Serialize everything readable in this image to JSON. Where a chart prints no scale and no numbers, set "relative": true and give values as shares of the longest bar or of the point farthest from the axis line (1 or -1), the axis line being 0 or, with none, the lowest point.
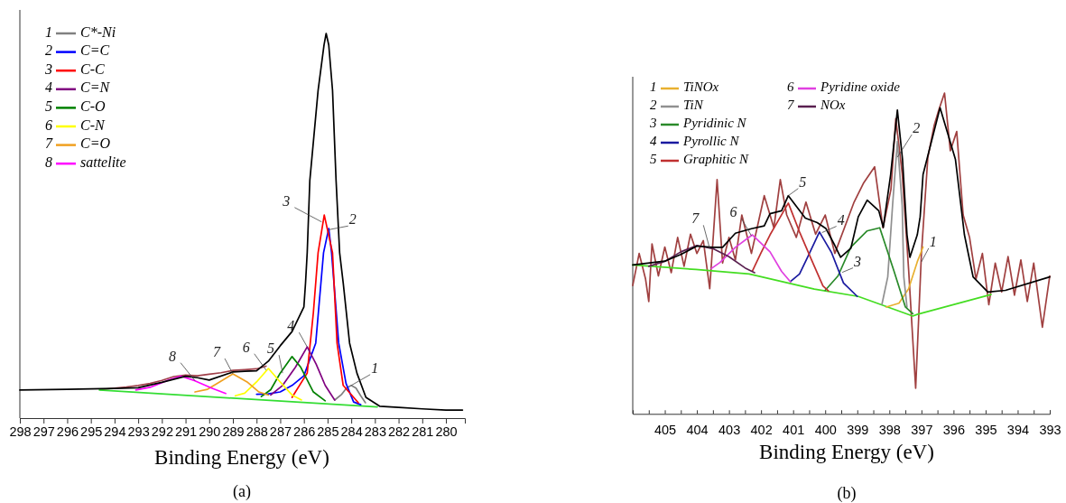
{
  "chart_data": [
    {
      "type": "line",
      "title": "(a)",
      "xlabel": "Binding Energy (eV)",
      "relative": true,
      "legend": "top left",
      "xlim": [
        298,
        279.2
      ],
      "xticks": [
        298,
        297,
        296,
        295,
        294,
        293,
        292,
        291,
        290,
        289,
        288,
        287,
        286,
        285,
        284,
        283,
        282,
        281,
        280
      ],
      "series": [
        {
          "color": "#a0404a",
          "x": [
            294.6,
            294,
            293.5,
            293,
            292.5,
            292,
            291.5,
            291,
            290.5,
            290,
            289.5,
            289,
            288.5,
            288,
            287.6
          ],
          "values": [
            0.074,
            0.078,
            0.081,
            0.085,
            0.09,
            0.098,
            0.108,
            0.112,
            0.11,
            0.114,
            0.118,
            0.124,
            0.126,
            0.128,
            0.135
          ]
        },
        {
          "color": "#33dd33",
          "x": [
            294.64,
            282.9
          ],
          "values": [
            0.073,
            0.029
          ]
        },
        {
          "name": "C*-Ni",
          "color": "#808080",
          "x": [
            284.7,
            284.4,
            284.2,
            284.0,
            283.8,
            283.6,
            283.4
          ],
          "values": [
            0.047,
            0.062,
            0.078,
            0.085,
            0.078,
            0.058,
            0.04
          ]
        },
        {
          "name": "C=C",
          "color": "#0000ff",
          "x": [
            288,
            287.5,
            287,
            286.5,
            286,
            285.5,
            285.17,
            284.95,
            284.83,
            284.53,
            284.22,
            283.9,
            283.6
          ],
          "values": [
            0.062,
            0.063,
            0.068,
            0.085,
            0.11,
            0.195,
            0.43,
            0.493,
            0.43,
            0.195,
            0.09,
            0.042,
            0.035
          ]
        },
        {
          "name": "C-C",
          "color": "#ff0000",
          "x": [
            286.5,
            285.86,
            285.6,
            285.4,
            285.14,
            284.79,
            284.6,
            284.34,
            283.7
          ],
          "values": [
            0.054,
            0.117,
            0.274,
            0.43,
            0.528,
            0.43,
            0.195,
            0.085,
            0.04
          ]
        },
        {
          "name": "C=N",
          "color": "#800080",
          "x": [
            287.4,
            286.9,
            286.36,
            285.86,
            285.48,
            285.1,
            284.7
          ],
          "values": [
            0.06,
            0.085,
            0.132,
            0.185,
            0.14,
            0.085,
            0.047
          ]
        },
        {
          "name": "C-O",
          "color": "#008000",
          "x": [
            287.8,
            287.4,
            287.0,
            286.5,
            286.13,
            285.6,
            285.1
          ],
          "values": [
            0.056,
            0.074,
            0.117,
            0.16,
            0.132,
            0.068,
            0.045
          ]
        },
        {
          "name": "C-N",
          "color": "#ffff00",
          "x": [
            288.9,
            288.5,
            288.0,
            287.5,
            287.0,
            286.5,
            286.1
          ],
          "values": [
            0.058,
            0.065,
            0.094,
            0.129,
            0.094,
            0.06,
            0.047
          ]
        },
        {
          "name": "C=O",
          "color": "#f0a020",
          "x": [
            290.6,
            290.07,
            289.56,
            289.0,
            288.4,
            287.9,
            287.5
          ],
          "values": [
            0.068,
            0.075,
            0.094,
            0.115,
            0.094,
            0.068,
            0.06
          ]
        },
        {
          "name": "sattelite",
          "color": "#ff00ff",
          "x": [
            293.1,
            292.5,
            291.8,
            291.2,
            290.6,
            289.9,
            289.3
          ],
          "values": [
            0.073,
            0.08,
            0.097,
            0.109,
            0.097,
            0.078,
            0.064
          ]
        },
        {
          "color": "#000000",
          "x": [
            298,
            296,
            295,
            294,
            293,
            292,
            291,
            290.5,
            290,
            289,
            288.5,
            288,
            287.5,
            287,
            286.5,
            286,
            285.93,
            285.86,
            285.75,
            285.4,
            285.15,
            285.06,
            284.95,
            284.79,
            284.64,
            284.49,
            284.34,
            284.07,
            283.76,
            283.38,
            282.8,
            282,
            281,
            280,
            279.3
          ],
          "values": [
            0.073,
            0.075,
            0.076,
            0.077,
            0.079,
            0.093,
            0.109,
            0.105,
            0.099,
            0.12,
            0.122,
            0.123,
            0.148,
            0.188,
            0.225,
            0.289,
            0.352,
            0.43,
            0.617,
            0.852,
            0.97,
            1.0,
            0.97,
            0.852,
            0.617,
            0.43,
            0.352,
            0.195,
            0.117,
            0.054,
            0.031,
            0.028,
            0.024,
            0.021,
            0.021
          ]
        }
      ],
      "annotations": [
        {
          "text": "1",
          "x": 284.0,
          "y": 0.085
        },
        {
          "text": "2",
          "x": 284.93,
          "y": 0.49
        },
        {
          "text": "3",
          "x": 285.25,
          "y": 0.51
        },
        {
          "text": "4",
          "x": 285.86,
          "y": 0.185
        },
        {
          "text": "5",
          "x": 286.9,
          "y": 0.117
        },
        {
          "text": "6",
          "x": 287.6,
          "y": 0.125
        },
        {
          "text": "7",
          "x": 289.0,
          "y": 0.115
        },
        {
          "text": "8",
          "x": 290.6,
          "y": 0.097
        }
      ]
    },
    {
      "type": "line",
      "title": "(b)",
      "xlabel": "Binding Energy (eV)",
      "relative": true,
      "legend": "top left",
      "xlim": [
        406,
        393
      ],
      "xticks": [
        {
          "value": 405.5,
          "label": null
        },
        405,
        {
          "value": 404.5,
          "label": null
        },
        404,
        {
          "value": 403.5,
          "label": null
        },
        403,
        {
          "value": 402.5,
          "label": null
        },
        402,
        {
          "value": 401.5,
          "label": null
        },
        401,
        {
          "value": 400.5,
          "label": null
        },
        400,
        {
          "value": 399.5,
          "label": null
        },
        399,
        {
          "value": 398.5,
          "label": null
        },
        398,
        {
          "value": 397.5,
          "label": null
        },
        397,
        {
          "value": 396.5,
          "label": null
        },
        396,
        {
          "value": 395.5,
          "label": null
        },
        395,
        {
          "value": 394.5,
          "label": null
        },
        394,
        {
          "value": 393.5,
          "label": null
        },
        393
      ],
      "series": [
        {
          "color": "#a04040",
          "x": [
            406,
            405.8,
            405.6,
            405.5,
            405.4,
            405.2,
            405.0,
            404.8,
            404.6,
            404.4,
            404.2,
            404.0,
            403.8,
            403.6,
            403.37,
            403.2,
            403.0,
            402.8,
            402.6,
            402.3,
            401.9,
            401.6,
            401.4,
            401.2,
            400.9,
            400.6,
            400.3,
            400.0,
            399.7,
            399.4,
            399.1,
            398.8,
            398.46,
            398.2,
            397.95,
            397.8,
            397.6,
            397.4,
            397.18,
            397.0,
            396.8,
            396.6,
            396.45,
            396.28,
            396.1,
            395.9,
            395.7,
            395.5,
            395.3,
            395.1,
            394.9,
            394.7,
            394.5,
            394.3,
            394.1,
            393.9,
            393.7,
            393.5,
            393.23,
            393.0
          ],
          "values": [
            0.4,
            0.5,
            0.42,
            0.35,
            0.53,
            0.43,
            0.52,
            0.44,
            0.55,
            0.46,
            0.56,
            0.5,
            0.54,
            0.39,
            0.73,
            0.47,
            0.55,
            0.48,
            0.62,
            0.5,
            0.68,
            0.58,
            0.73,
            0.62,
            0.55,
            0.66,
            0.56,
            0.62,
            0.5,
            0.58,
            0.66,
            0.72,
            0.77,
            0.58,
            0.7,
            0.92,
            0.75,
            0.45,
            0.08,
            0.5,
            0.8,
            0.9,
            0.95,
            1.0,
            0.82,
            0.88,
            0.62,
            0.55,
            0.42,
            0.5,
            0.34,
            0.47,
            0.38,
            0.49,
            0.37,
            0.48,
            0.35,
            0.47,
            0.27,
            0.43
          ]
        },
        {
          "color": "#44dd22",
          "x": [
            406,
            404.03,
            402.37,
            400.34,
            398.97,
            398.05,
            397.27,
            397.13,
            394.83
          ],
          "values": [
            0.464,
            0.45,
            0.436,
            0.389,
            0.366,
            0.333,
            0.305,
            0.31,
            0.372
          ]
        },
        {
          "name": "TiNOx",
          "color": "#e8b030",
          "x": [
            398.1,
            397.7,
            397.4,
            397.13,
            396.95
          ],
          "values": [
            0.333,
            0.345,
            0.39,
            0.474,
            0.52
          ]
        },
        {
          "name": "TiN",
          "color": "#909090",
          "x": [
            398.23,
            398.05,
            397.9,
            397.75,
            397.6,
            397.55,
            397.45
          ],
          "values": [
            0.342,
            0.427,
            0.65,
            0.849,
            0.65,
            0.427,
            0.333
          ]
        },
        {
          "name": "Pyridinic N",
          "color": "#2a8a2a",
          "x": [
            400.0,
            399.6,
            399.2,
            398.7,
            398.3,
            397.86,
            397.5,
            397.27
          ],
          "values": [
            0.385,
            0.43,
            0.52,
            0.57,
            0.58,
            0.446,
            0.333,
            0.312
          ]
        },
        {
          "name": "Pyrollic N",
          "color": "#1a1aa0",
          "x": [
            401.08,
            400.8,
            400.53,
            400.18,
            399.8,
            399.43,
            399.0
          ],
          "values": [
            0.413,
            0.436,
            0.492,
            0.567,
            0.502,
            0.408,
            0.366
          ]
        },
        {
          "name": "Graphitic N",
          "color": "#c03030",
          "x": [
            402.27,
            402.0,
            401.72,
            401.15,
            400.8,
            400.44,
            400.07,
            399.9
          ],
          "values": [
            0.445,
            0.502,
            0.558,
            0.657,
            0.567,
            0.483,
            0.399,
            0.383
          ]
        },
        {
          "name": "Pyridine oxide",
          "color": "#e040e0",
          "x": [
            403.55,
            403.28,
            402.8,
            402.27,
            401.72,
            401.36,
            401.08
          ],
          "values": [
            0.453,
            0.472,
            0.519,
            0.558,
            0.505,
            0.444,
            0.411
          ]
        },
        {
          "name": "NOx",
          "color": "#5a2050",
          "x": [
            405.5,
            405,
            404.5,
            404,
            403.5,
            403,
            402.5,
            402.2
          ],
          "values": [
            0.46,
            0.475,
            0.505,
            0.525,
            0.515,
            0.49,
            0.455,
            0.44
          ]
        },
        {
          "color": "#000000",
          "x": [
            406,
            405,
            404.5,
            404,
            403.5,
            403.2,
            402.8,
            402.3,
            401.9,
            401.72,
            401.36,
            401.15,
            400.62,
            400.25,
            399.98,
            399.7,
            399.52,
            399.2,
            398.97,
            398.69,
            398.33,
            398.19,
            397.96,
            397.75,
            397.59,
            397.45,
            397.36,
            397.13,
            397.04,
            396.95,
            396.42,
            395.94,
            395.66,
            395.39,
            394.93,
            394.38,
            393.0
          ],
          "values": [
            0.464,
            0.476,
            0.497,
            0.523,
            0.519,
            0.519,
            0.563,
            0.577,
            0.586,
            0.624,
            0.633,
            0.68,
            0.61,
            0.596,
            0.578,
            0.525,
            0.488,
            0.516,
            0.614,
            0.666,
            0.633,
            0.581,
            0.746,
            0.947,
            0.793,
            0.558,
            0.488,
            0.558,
            0.614,
            0.746,
            0.954,
            0.793,
            0.558,
            0.427,
            0.38,
            0.385,
            0.427
          ]
        }
      ],
      "annotations": [
        {
          "text": "1",
          "x": 397.0,
          "y": 0.474
        },
        {
          "text": "2",
          "x": 397.75,
          "y": 0.8
        },
        {
          "text": "3",
          "x": 399.47,
          "y": 0.441
        },
        {
          "text": "4",
          "x": 400.1,
          "y": 0.565
        },
        {
          "text": "5",
          "x": 401.15,
          "y": 0.68
        },
        {
          "text": "6",
          "x": 402.3,
          "y": 0.555
        },
        {
          "text": "7",
          "x": 403.6,
          "y": 0.515
        }
      ]
    }
  ]
}
